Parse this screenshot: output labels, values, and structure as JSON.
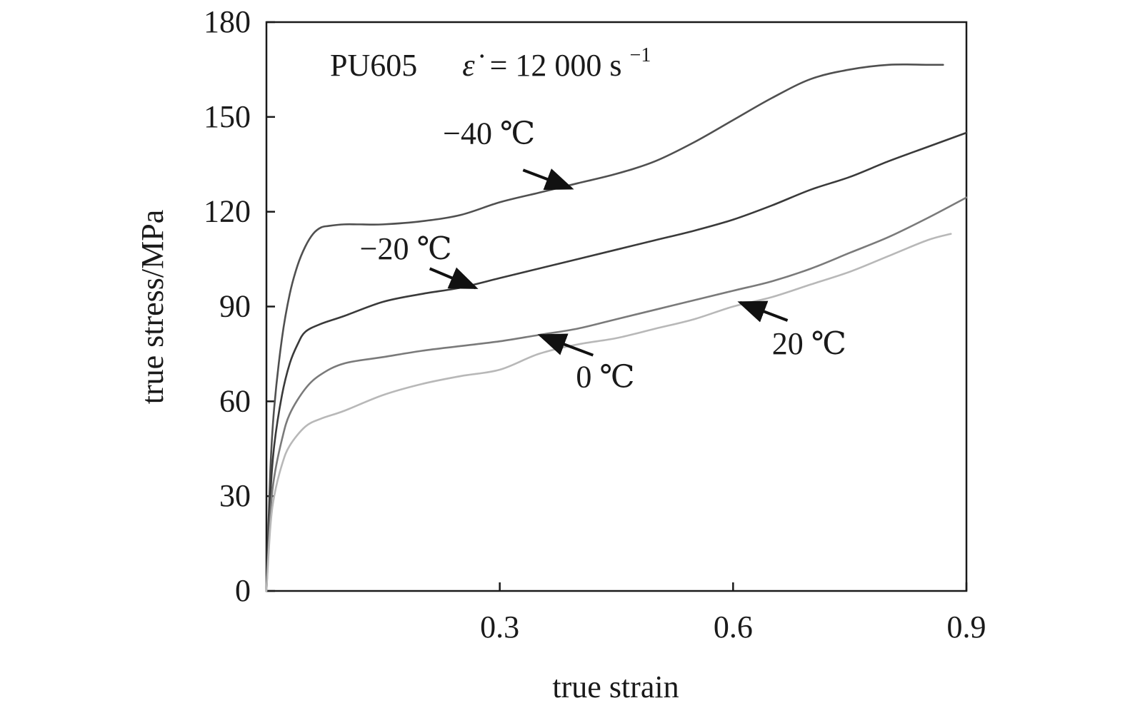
{
  "chart_data": {
    "type": "line",
    "xlabel": "true strain",
    "ylabel": "true stress/MPa",
    "xlim": [
      0,
      0.9
    ],
    "ylim": [
      0,
      180
    ],
    "xticks": [
      0.3,
      0.6,
      0.9
    ],
    "yticks": [
      0,
      30,
      60,
      90,
      120,
      150,
      180
    ],
    "grid": false,
    "annotation": {
      "sample": "PU605",
      "rate_symbol": "ε̇",
      "rate_value": "= 12 000 s",
      "rate_exponent": "−1"
    },
    "series": [
      {
        "name": "−40 ℃",
        "color": "#505050",
        "x": [
          0,
          0.005,
          0.01,
          0.02,
          0.03,
          0.04,
          0.05,
          0.06,
          0.07,
          0.08,
          0.1,
          0.12,
          0.15,
          0.2,
          0.25,
          0.3,
          0.35,
          0.4,
          0.45,
          0.5,
          0.55,
          0.6,
          0.65,
          0.7,
          0.75,
          0.8,
          0.85,
          0.87
        ],
        "y": [
          0,
          38,
          58,
          80,
          94,
          103,
          109,
          113,
          115,
          115.5,
          116,
          116,
          116,
          117,
          119,
          123,
          126,
          129,
          132,
          136,
          142,
          149,
          156,
          162,
          165,
          166.5,
          166.5,
          166.5
        ]
      },
      {
        "name": "−20 ℃",
        "color": "#3a3a3a",
        "x": [
          0,
          0.005,
          0.01,
          0.02,
          0.03,
          0.04,
          0.05,
          0.07,
          0.1,
          0.15,
          0.2,
          0.25,
          0.3,
          0.35,
          0.4,
          0.45,
          0.5,
          0.55,
          0.6,
          0.65,
          0.7,
          0.75,
          0.8,
          0.85,
          0.9
        ],
        "y": [
          0,
          30,
          46,
          62,
          72,
          78,
          82,
          84.5,
          87,
          91.5,
          94,
          96,
          99,
          102,
          105,
          108,
          111,
          114,
          117.5,
          122,
          127,
          131,
          136,
          140.5,
          145
        ]
      },
      {
        "name": "0 ℃",
        "color": "#7a7a7a",
        "x": [
          0,
          0.005,
          0.01,
          0.02,
          0.03,
          0.05,
          0.07,
          0.1,
          0.15,
          0.2,
          0.25,
          0.3,
          0.35,
          0.4,
          0.45,
          0.5,
          0.55,
          0.6,
          0.65,
          0.7,
          0.75,
          0.8,
          0.85,
          0.9
        ],
        "y": [
          0,
          24,
          36,
          48,
          56,
          64,
          68.5,
          72,
          74,
          76,
          77.5,
          79,
          81,
          83,
          86,
          89,
          92,
          95,
          98,
          102,
          107,
          112,
          118,
          124.5
        ]
      },
      {
        "name": "20 ℃",
        "color": "#b8b8b8",
        "x": [
          0,
          0.005,
          0.01,
          0.02,
          0.03,
          0.05,
          0.07,
          0.1,
          0.15,
          0.2,
          0.25,
          0.3,
          0.35,
          0.4,
          0.45,
          0.5,
          0.55,
          0.6,
          0.65,
          0.7,
          0.75,
          0.8,
          0.85,
          0.88
        ],
        "y": [
          0,
          20,
          30,
          40,
          46,
          52,
          54.5,
          57,
          62,
          65.5,
          68,
          70,
          75,
          78,
          80,
          83,
          86,
          90,
          93,
          97,
          101,
          106,
          111,
          113
        ]
      }
    ],
    "labels": [
      {
        "text": "−40 ℃",
        "series": 0,
        "text_at": [
          0.227,
          141.5
        ],
        "arrow_from": [
          0.33,
          133.2
        ],
        "arrow_to": [
          0.392,
          127.4
        ]
      },
      {
        "text": "−20 ℃",
        "series": 1,
        "text_at": [
          0.12,
          105
        ],
        "arrow_from": [
          0.21,
          102
        ],
        "arrow_to": [
          0.269,
          95.9
        ]
      },
      {
        "text": "0 ℃",
        "series": 2,
        "text_at": [
          0.398,
          64.5
        ],
        "arrow_from": [
          0.42,
          74.6
        ],
        "arrow_to": [
          0.352,
          80.9
        ]
      },
      {
        "text": "20 ℃",
        "series": 3,
        "text_at": [
          0.65,
          75
        ],
        "arrow_from": [
          0.67,
          85.6
        ],
        "arrow_to": [
          0.609,
          91.3
        ]
      }
    ]
  }
}
